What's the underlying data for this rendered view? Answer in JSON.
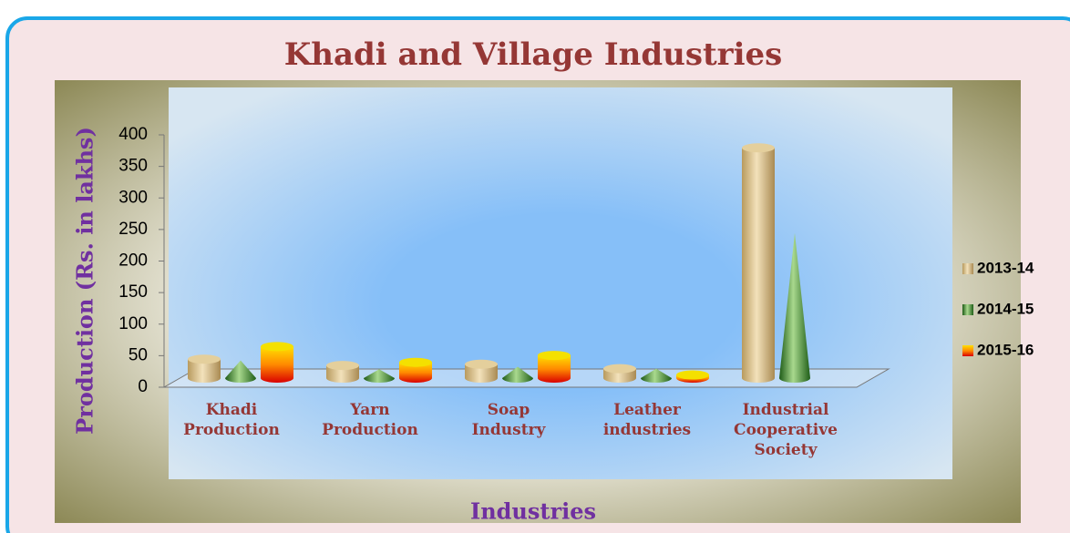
{
  "chart_data": {
    "type": "bar3d",
    "title": "Khadi and Village Industries",
    "y_label": "Production (Rs. in lakhs)",
    "x_label": "Industries",
    "categories": [
      "Khadi Production",
      "Yarn Production",
      "Soap Industry",
      "Leather industries",
      "Industrial Cooperative Society"
    ],
    "series": [
      {
        "name": "2013-14",
        "color": "#e8cf9a",
        "shape": "cylinder",
        "values": [
          30,
          20,
          22,
          15,
          365
        ]
      },
      {
        "name": "2014-15",
        "color": "#3c8a2e",
        "shape": "cone",
        "values": [
          28,
          14,
          18,
          15,
          230
        ]
      },
      {
        "name": "2015-16",
        "color": "#f03010",
        "shape": "cylinder",
        "values": [
          50,
          25,
          36,
          5,
          null
        ]
      }
    ],
    "ylim": [
      0,
      400
    ],
    "yticks": [
      0,
      50,
      100,
      150,
      200,
      250,
      300,
      350,
      400
    ],
    "legend": "right"
  }
}
